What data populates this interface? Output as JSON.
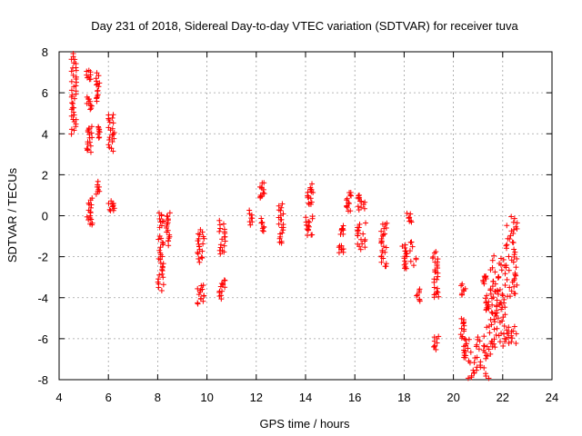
{
  "chart_data": {
    "type": "scatter",
    "title": "Day 231 of 2018, Sidereal Day-to-day VTEC variation (SDTVAR) for receiver tuva",
    "xlabel": "GPS time / hours",
    "ylabel": "SDTVAR / TECUs",
    "xlim": [
      4,
      24
    ],
    "ylim": [
      -8,
      8
    ],
    "xticks": [
      4,
      6,
      8,
      10,
      12,
      14,
      16,
      18,
      20,
      22,
      24
    ],
    "yticks": [
      -8,
      -6,
      -4,
      -2,
      0,
      2,
      4,
      6,
      8
    ],
    "grid": true,
    "marker": "+",
    "color": "#ff0000",
    "series": [
      {
        "name": "SDTVAR",
        "clusters": [
          {
            "x0": 4.5,
            "x1": 4.7,
            "y0": 4.0,
            "y1": 7.9
          },
          {
            "x0": 5.1,
            "x1": 5.3,
            "y0": 6.6,
            "y1": 7.1
          },
          {
            "x0": 5.5,
            "x1": 5.65,
            "y0": 5.6,
            "y1": 6.9
          },
          {
            "x0": 5.1,
            "x1": 5.35,
            "y0": 5.2,
            "y1": 5.8
          },
          {
            "x0": 5.1,
            "x1": 5.35,
            "y0": 3.1,
            "y1": 4.4
          },
          {
            "x0": 5.5,
            "x1": 5.65,
            "y0": 3.8,
            "y1": 4.3
          },
          {
            "x0": 6.0,
            "x1": 6.25,
            "y0": 3.2,
            "y1": 5.0
          },
          {
            "x0": 5.1,
            "x1": 5.35,
            "y0": -0.5,
            "y1": 0.8
          },
          {
            "x0": 5.5,
            "x1": 5.65,
            "y0": 1.1,
            "y1": 1.6
          },
          {
            "x0": 6.0,
            "x1": 6.25,
            "y0": 0.2,
            "y1": 0.7
          },
          {
            "x0": 8.0,
            "x1": 8.25,
            "y0": -3.6,
            "y1": -1.0
          },
          {
            "x0": 8.05,
            "x1": 8.25,
            "y0": -0.5,
            "y1": 0.1
          },
          {
            "x0": 8.35,
            "x1": 8.5,
            "y0": -1.4,
            "y1": 0.1
          },
          {
            "x0": 9.6,
            "x1": 9.9,
            "y0": -2.2,
            "y1": -0.7
          },
          {
            "x0": 9.6,
            "x1": 9.9,
            "y0": -4.3,
            "y1": -3.4
          },
          {
            "x0": 10.5,
            "x1": 10.75,
            "y0": -1.9,
            "y1": -0.3
          },
          {
            "x0": 10.5,
            "x1": 10.75,
            "y0": -4.0,
            "y1": -3.1
          },
          {
            "x0": 11.7,
            "x1": 11.85,
            "y0": -0.4,
            "y1": 0.2
          },
          {
            "x0": 12.1,
            "x1": 12.35,
            "y0": 0.8,
            "y1": 1.6
          },
          {
            "x0": 12.15,
            "x1": 12.35,
            "y0": -0.8,
            "y1": -0.2
          },
          {
            "x0": 12.9,
            "x1": 13.1,
            "y0": -1.4,
            "y1": 0.6
          },
          {
            "x0": 14.0,
            "x1": 14.3,
            "y0": 0.5,
            "y1": 1.5
          },
          {
            "x0": 14.0,
            "x1": 14.3,
            "y0": -1.0,
            "y1": 0.0
          },
          {
            "x0": 15.35,
            "x1": 15.55,
            "y0": -1.8,
            "y1": -1.4
          },
          {
            "x0": 15.4,
            "x1": 15.55,
            "y0": -0.9,
            "y1": -0.5
          },
          {
            "x0": 15.65,
            "x1": 15.85,
            "y0": 0.2,
            "y1": 1.2
          },
          {
            "x0": 16.1,
            "x1": 16.45,
            "y0": 0.3,
            "y1": 1.0
          },
          {
            "x0": 16.1,
            "x1": 16.45,
            "y0": -1.6,
            "y1": -0.4
          },
          {
            "x0": 17.05,
            "x1": 17.3,
            "y0": -2.5,
            "y1": -0.3
          },
          {
            "x0": 17.9,
            "x1": 18.5,
            "y0": -2.6,
            "y1": -1.3
          },
          {
            "x0": 18.1,
            "x1": 18.3,
            "y0": -0.3,
            "y1": 0.1
          },
          {
            "x0": 18.5,
            "x1": 18.65,
            "y0": -4.2,
            "y1": -3.6
          },
          {
            "x0": 19.15,
            "x1": 19.4,
            "y0": -3.2,
            "y1": -1.8
          },
          {
            "x0": 19.2,
            "x1": 19.4,
            "y0": -4.0,
            "y1": -3.5
          },
          {
            "x0": 19.2,
            "x1": 19.4,
            "y0": -6.5,
            "y1": -5.9
          },
          {
            "x0": 20.3,
            "x1": 20.5,
            "y0": -3.9,
            "y1": -3.4
          },
          {
            "x0": 20.3,
            "x1": 20.5,
            "y0": -6.0,
            "y1": -5.0
          },
          {
            "x0": 20.4,
            "x1": 20.6,
            "y0": -7.0,
            "y1": -6.1
          },
          {
            "x0": 20.6,
            "x1": 21.6,
            "y0": -8.0,
            "y1": -5.9
          },
          {
            "x0": 21.3,
            "x1": 22.0,
            "y0": -6.5,
            "y1": -3.5
          },
          {
            "x0": 21.5,
            "x1": 22.1,
            "y0": -5.0,
            "y1": -2.0
          },
          {
            "x0": 22.0,
            "x1": 22.6,
            "y0": -6.3,
            "y1": -5.4
          },
          {
            "x0": 22.1,
            "x1": 22.6,
            "y0": -4.0,
            "y1": -0.1
          },
          {
            "x0": 21.2,
            "x1": 21.35,
            "y0": -3.3,
            "y1": -2.9
          },
          {
            "x0": 21.3,
            "x1": 21.45,
            "y0": -4.6,
            "y1": -4.2
          }
        ]
      }
    ]
  }
}
